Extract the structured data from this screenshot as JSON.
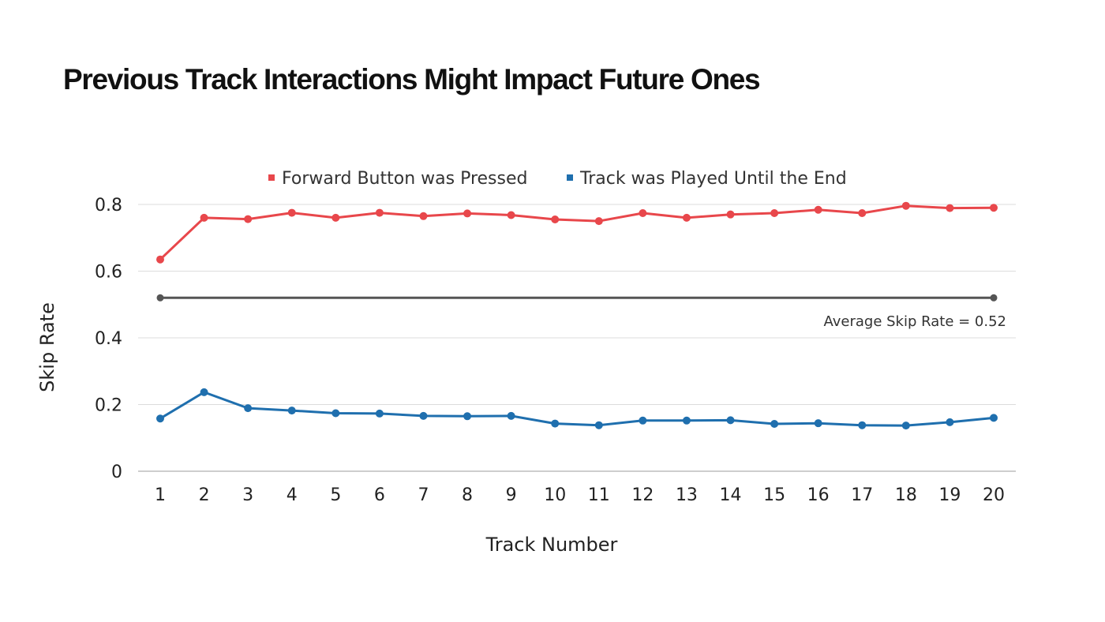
{
  "chart_data": {
    "type": "line",
    "title": "Previous Track Interactions Might Impact Future Ones",
    "xlabel": "Track Number",
    "ylabel": "Skip Rate",
    "x": [
      1,
      2,
      3,
      4,
      5,
      6,
      7,
      8,
      9,
      10,
      11,
      12,
      13,
      14,
      15,
      16,
      17,
      18,
      19,
      20
    ],
    "ylim": [
      0,
      0.8
    ],
    "yticks": [
      "0",
      "0.2",
      "0.4",
      "0.6",
      "0.8"
    ],
    "grid": "horizontal",
    "legend_position": "top",
    "series": [
      {
        "name": "Forward Button was Pressed",
        "color": "#e8474b",
        "values": [
          0.635,
          0.76,
          0.756,
          0.775,
          0.76,
          0.775,
          0.765,
          0.773,
          0.768,
          0.755,
          0.75,
          0.774,
          0.76,
          0.77,
          0.774,
          0.784,
          0.774,
          0.796,
          0.789,
          0.79
        ]
      },
      {
        "name": "Track was Played Until the End",
        "color": "#1f6fae",
        "values": [
          0.158,
          0.237,
          0.189,
          0.182,
          0.174,
          0.173,
          0.166,
          0.165,
          0.166,
          0.143,
          0.138,
          0.152,
          0.152,
          0.153,
          0.142,
          0.144,
          0.138,
          0.137,
          0.147,
          0.16
        ]
      }
    ],
    "reference_line": {
      "value": 0.52,
      "label": "Average Skip Rate = 0.52",
      "color": "#555555"
    }
  }
}
